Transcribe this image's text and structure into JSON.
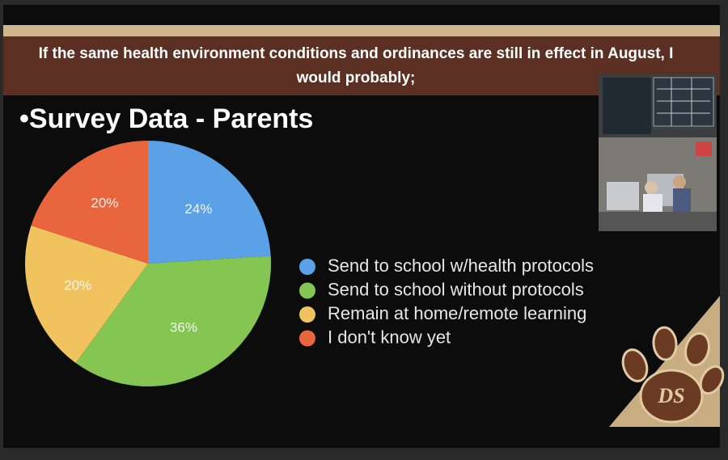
{
  "header": {
    "subtitle": "If the same health environment conditions and ordinances are still in effect in August, I would probably;"
  },
  "logo": "DS",
  "chart_data": {
    "type": "pie",
    "title": "•Survey Data - Parents",
    "categories": [
      "Send to school w/health protocols",
      "Send to school without protocols",
      "Remain at home/remote learning",
      "I don't know yet"
    ],
    "values": [
      24,
      36,
      20,
      20
    ],
    "value_labels": [
      "24%",
      "36%",
      "20%",
      "20%"
    ],
    "colors": [
      "#5ba1e8",
      "#85c552",
      "#f0c35e",
      "#e9653d"
    ],
    "legend": "right"
  }
}
